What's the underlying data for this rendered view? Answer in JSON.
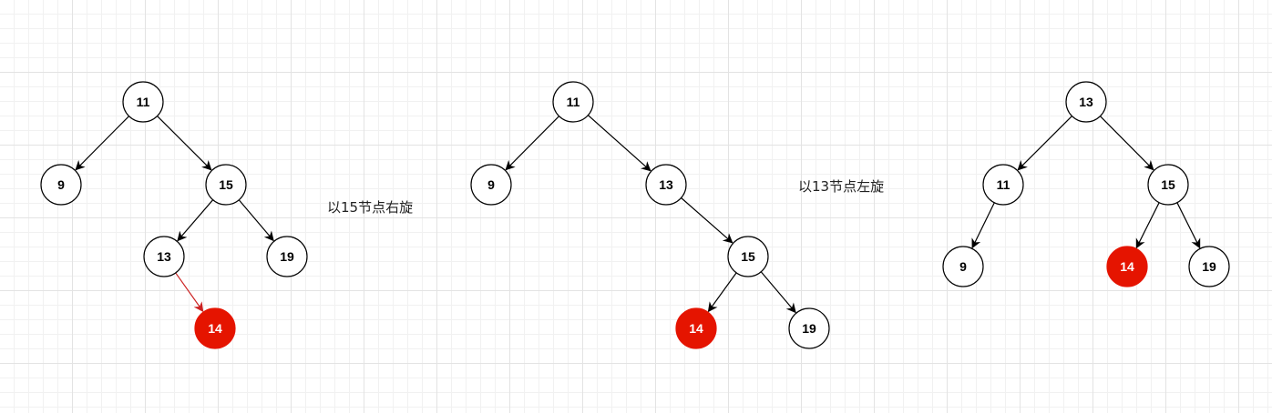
{
  "colors": {
    "node_fill": "#ffffff",
    "highlight_fill": "#e51400",
    "node_stroke": "#000000",
    "edge": "#000000",
    "highlight_edge": "#cc2222",
    "label_on_highlight": "#ffffff",
    "label": "#000000"
  },
  "captions": {
    "step1": "以15节点右旋",
    "step2": "以13节点左旋"
  },
  "trees": [
    {
      "name": "before-right-rotation",
      "nodes": [
        {
          "id": "n11",
          "label": "11"
        },
        {
          "id": "n9",
          "label": "9"
        },
        {
          "id": "n15",
          "label": "15"
        },
        {
          "id": "n13",
          "label": "13"
        },
        {
          "id": "n19",
          "label": "19"
        },
        {
          "id": "n14",
          "label": "14",
          "highlight": true
        }
      ],
      "edges": [
        {
          "from": "n11",
          "to": "n9"
        },
        {
          "from": "n11",
          "to": "n15"
        },
        {
          "from": "n15",
          "to": "n13"
        },
        {
          "from": "n15",
          "to": "n19"
        },
        {
          "from": "n13",
          "to": "n14",
          "highlight": true
        }
      ]
    },
    {
      "name": "after-right-rotation",
      "nodes": [
        {
          "id": "n11",
          "label": "11"
        },
        {
          "id": "n9",
          "label": "9"
        },
        {
          "id": "n13",
          "label": "13"
        },
        {
          "id": "n15",
          "label": "15"
        },
        {
          "id": "n14",
          "label": "14",
          "highlight": true
        },
        {
          "id": "n19",
          "label": "19"
        }
      ],
      "edges": [
        {
          "from": "n11",
          "to": "n9"
        },
        {
          "from": "n11",
          "to": "n13"
        },
        {
          "from": "n13",
          "to": "n15"
        },
        {
          "from": "n15",
          "to": "n14"
        },
        {
          "from": "n15",
          "to": "n19"
        }
      ]
    },
    {
      "name": "after-left-rotation",
      "nodes": [
        {
          "id": "n13",
          "label": "13"
        },
        {
          "id": "n11",
          "label": "11"
        },
        {
          "id": "n15",
          "label": "15"
        },
        {
          "id": "n9",
          "label": "9"
        },
        {
          "id": "n14",
          "label": "14",
          "highlight": true
        },
        {
          "id": "n19",
          "label": "19"
        }
      ],
      "edges": [
        {
          "from": "n13",
          "to": "n11"
        },
        {
          "from": "n13",
          "to": "n15"
        },
        {
          "from": "n11",
          "to": "n9"
        },
        {
          "from": "n15",
          "to": "n14"
        },
        {
          "from": "n15",
          "to": "n19"
        }
      ]
    }
  ]
}
